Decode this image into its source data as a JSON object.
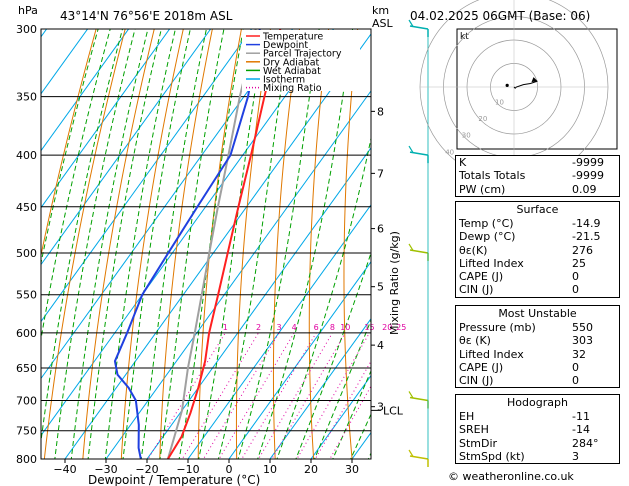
{
  "header": {
    "hpa_label": "hPa",
    "location": "43°14'N  76°56'E  2018m  ASL",
    "km_label": "km",
    "asl_label": "ASL",
    "datetime": "04.02.2025  06GMT  (Base: 06)"
  },
  "footer": {
    "credit": "© weatheronline.co.uk"
  },
  "colors": {
    "temperature": "#ff2020",
    "dewpoint": "#2040e0",
    "parcel": "#a0a0a0",
    "dry_adiabat": "#e07800",
    "wet_adiabat": "#00a000",
    "isotherm": "#00a8e8",
    "mixing_ratio": "#e000a0"
  },
  "chart_data": {
    "type": "skew-t",
    "title": "43°14'N  76°56'E  2018m  ASL",
    "xlabel": "Dewpoint / Temperature (°C)",
    "ylabel_left": "hPa",
    "ylabel_right": "Mixing Ratio (g/kg)",
    "pressure_levels": [
      300,
      350,
      400,
      450,
      500,
      550,
      600,
      650,
      700,
      750,
      800
    ],
    "pressure_labels": [
      "300",
      "350",
      "400",
      "450",
      "500",
      "550",
      "600",
      "650",
      "700",
      "750",
      "800"
    ],
    "temp_ticks": [
      -40,
      -30,
      -20,
      -10,
      0,
      10,
      20,
      30
    ],
    "temp_labels": [
      "−40",
      "−30",
      "−20",
      "−10",
      "0",
      "10",
      "20",
      "30"
    ],
    "xlim": [
      -46,
      34
    ],
    "ylim": [
      800,
      300
    ],
    "km_ticks": [
      {
        "km": 8,
        "p": 362,
        "label": "8"
      },
      {
        "km": 7,
        "p": 417,
        "label": "7"
      },
      {
        "km": 6,
        "p": 473,
        "label": "6"
      },
      {
        "km": 5,
        "p": 540,
        "label": "5"
      },
      {
        "km": 4,
        "p": 617,
        "label": "4"
      },
      {
        "km": 3,
        "p": 710,
        "label": "3"
      }
    ],
    "lcl": {
      "p": 716,
      "label": "LCL"
    },
    "mixing_ratio_lines": [
      {
        "w": 1,
        "label": "1"
      },
      {
        "w": 2,
        "label": "2"
      },
      {
        "w": 3,
        "label": "3"
      },
      {
        "w": 4,
        "label": "4"
      },
      {
        "w": 6,
        "label": "6"
      },
      {
        "w": 8,
        "label": "8"
      },
      {
        "w": 10,
        "label": "10"
      },
      {
        "w": 15,
        "label": "15"
      },
      {
        "w": 20,
        "label": "20"
      },
      {
        "w": 25,
        "label": "25"
      }
    ],
    "series": [
      {
        "name": "Temperature",
        "points": [
          [
            800,
            -14.9
          ],
          [
            760,
            -15.5
          ],
          [
            720,
            -17.5
          ],
          [
            680,
            -20
          ],
          [
            640,
            -23
          ],
          [
            600,
            -27
          ],
          [
            550,
            -31.5
          ],
          [
            500,
            -36.5
          ],
          [
            450,
            -42
          ],
          [
            400,
            -48
          ],
          [
            350,
            -55
          ],
          [
            300,
            -63
          ]
        ]
      },
      {
        "name": "Dewpoint",
        "points": [
          [
            800,
            -21.5
          ],
          [
            780,
            -24
          ],
          [
            740,
            -28
          ],
          [
            700,
            -33
          ],
          [
            680,
            -37
          ],
          [
            660,
            -42
          ],
          [
            640,
            -45
          ],
          [
            600,
            -47
          ],
          [
            550,
            -50
          ],
          [
            500,
            -51
          ],
          [
            450,
            -52
          ],
          [
            400,
            -53
          ],
          [
            350,
            -59
          ],
          [
            300,
            -68
          ]
        ]
      },
      {
        "name": "Parcel Trajectory",
        "points": [
          [
            800,
            -14.9
          ],
          [
            716,
            -20
          ],
          [
            650,
            -26
          ],
          [
            600,
            -30.5
          ],
          [
            550,
            -35.5
          ],
          [
            500,
            -41
          ],
          [
            450,
            -47
          ],
          [
            400,
            -53.5
          ],
          [
            350,
            -61
          ],
          [
            300,
            -69
          ]
        ]
      }
    ],
    "legend": [
      {
        "label": "Temperature",
        "style": "solid",
        "key": "temperature"
      },
      {
        "label": "Dewpoint",
        "style": "solid",
        "key": "dewpoint"
      },
      {
        "label": "Parcel Trajectory",
        "style": "solid",
        "key": "parcel"
      },
      {
        "label": "Dry Adiabat",
        "style": "solid",
        "key": "dry_adiabat"
      },
      {
        "label": "Wet Adiabat",
        "style": "solid",
        "key": "wet_adiabat"
      },
      {
        "label": "Isotherm",
        "style": "solid",
        "key": "isotherm"
      },
      {
        "label": "Mixing Ratio",
        "style": "dotted",
        "key": "mixing_ratio"
      }
    ],
    "wind_barbs": [
      {
        "p": 300,
        "color": "#00b0b0"
      },
      {
        "p": 400,
        "color": "#00b0b0"
      },
      {
        "p": 500,
        "color": "#a0c000"
      },
      {
        "p": 700,
        "color": "#a0c000"
      },
      {
        "p": 800,
        "color": "#c0c000"
      }
    ],
    "hodograph": {
      "label": "kt",
      "ring_labels": [
        "10",
        "20",
        "30",
        "40"
      ],
      "ring_kt": [
        10,
        20,
        30,
        40
      ],
      "trace_kt": [
        [
          0,
          0
        ],
        [
          0.5,
          -0.5
        ],
        [
          1,
          0
        ],
        [
          4,
          1
        ],
        [
          7,
          1.5
        ],
        [
          10,
          2.5
        ]
      ],
      "storm_kt": [
        -2.9,
        0.7
      ]
    }
  },
  "indices": {
    "basic": [
      {
        "label": "K",
        "value": "-9999"
      },
      {
        "label": "Totals Totals",
        "value": "-9999"
      },
      {
        "label": "PW (cm)",
        "value": "0.09"
      }
    ],
    "surface": {
      "title": "Surface",
      "rows": [
        {
          "label": "Temp (°C)",
          "value": "-14.9"
        },
        {
          "label": "Dewp (°C)",
          "value": "-21.5"
        },
        {
          "label": "θε(K)",
          "value": "276"
        },
        {
          "label": "Lifted Index",
          "value": "25"
        },
        {
          "label": "CAPE (J)",
          "value": "0"
        },
        {
          "label": "CIN (J)",
          "value": "0"
        }
      ]
    },
    "most_unstable": {
      "title": "Most Unstable",
      "rows": [
        {
          "label": "Pressure (mb)",
          "value": "550"
        },
        {
          "label": "θε (K)",
          "value": "303"
        },
        {
          "label": "Lifted Index",
          "value": "32"
        },
        {
          "label": "CAPE (J)",
          "value": "0"
        },
        {
          "label": "CIN (J)",
          "value": "0"
        }
      ]
    },
    "hodograph": {
      "title": "Hodograph",
      "rows": [
        {
          "label": "EH",
          "value": "-11"
        },
        {
          "label": "SREH",
          "value": "-14"
        },
        {
          "label": "StmDir",
          "value": "284°"
        },
        {
          "label": "StmSpd (kt)",
          "value": "3"
        }
      ]
    }
  }
}
